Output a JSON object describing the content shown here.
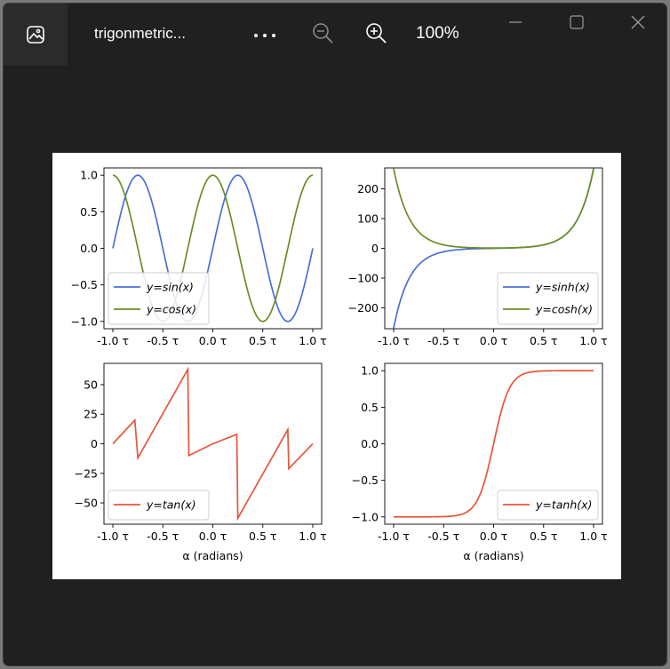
{
  "window": {
    "title": "trigonmetric...",
    "zoom_level": "100%",
    "icons": {
      "app": "image-icon",
      "more": "more-icon",
      "zoom_out": "zoom-out-icon",
      "zoom_in": "zoom-in-icon",
      "minimize": "minimize-icon",
      "maximize": "maximize-icon",
      "close": "close-icon"
    }
  },
  "chart_data": [
    {
      "type": "line",
      "xlim": [
        -1.0,
        1.0
      ],
      "ylim": [
        -1.1,
        1.1
      ],
      "xticks": [
        "-1.0 τ",
        "-0.5 τ",
        "0.0 τ",
        "0.5 τ",
        "1.0 τ"
      ],
      "yticks": [
        "1.0",
        "0.5",
        "0.0",
        "−0.5",
        "−1.0"
      ],
      "yticks_values": [
        1.0,
        0.5,
        0.0,
        -0.5,
        -1.0
      ],
      "xlabel": "",
      "legend": "lower-left",
      "series": [
        {
          "name": "y=sin(x)",
          "color": "#4a6fd8",
          "fn": "sin",
          "x": [
            -1.0,
            -0.75,
            -0.5,
            -0.25,
            0.0,
            0.25,
            0.5,
            0.75,
            1.0
          ],
          "values": [
            0,
            1,
            0,
            -1,
            0,
            1,
            0,
            -1,
            0
          ]
        },
        {
          "name": "y=cos(x)",
          "color": "#6b8e23",
          "fn": "cos",
          "x": [
            -1.0,
            -0.75,
            -0.5,
            -0.25,
            0.0,
            0.25,
            0.5,
            0.75,
            1.0
          ],
          "values": [
            1,
            0,
            -1,
            0,
            1,
            0,
            -1,
            0,
            1
          ]
        }
      ]
    },
    {
      "type": "line",
      "xlim": [
        -1.0,
        1.0
      ],
      "ylim": [
        -270,
        270
      ],
      "xticks": [
        "-1.0 τ",
        "-0.5 τ",
        "0.0 τ",
        "0.5 τ",
        "1.0 τ"
      ],
      "yticks": [
        "200",
        "100",
        "0",
        "−100",
        "−200"
      ],
      "yticks_values": [
        200,
        100,
        0,
        -100,
        -200
      ],
      "xlabel": "",
      "legend": "lower-right",
      "series": [
        {
          "name": "y=sinh(x)",
          "color": "#4a6fd8",
          "fn": "sinh",
          "x": [
            -1.0,
            -0.5,
            0.0,
            0.5,
            1.0
          ],
          "values": [
            -268,
            -11.5,
            0,
            11.5,
            268
          ]
        },
        {
          "name": "y=cosh(x)",
          "color": "#6b8e23",
          "fn": "cosh",
          "x": [
            -1.0,
            -0.5,
            0.0,
            0.5,
            1.0
          ],
          "values": [
            268,
            11.6,
            1,
            11.6,
            268
          ]
        }
      ]
    },
    {
      "type": "line",
      "xlim": [
        -1.0,
        1.0
      ],
      "ylim": [
        -68,
        68
      ],
      "xticks": [
        "-1.0 τ",
        "-0.5 τ",
        "0.0 τ",
        "0.5 τ",
        "1.0 τ"
      ],
      "yticks": [
        "50",
        "25",
        "0",
        "−25",
        "−50"
      ],
      "yticks_values": [
        50,
        25,
        0,
        -25,
        -50
      ],
      "xlabel": "α (radians)",
      "legend": "lower-left",
      "series": [
        {
          "name": "y=tan(x)",
          "color": "#e8553a",
          "fn": "tan",
          "x": [
            -1.0,
            -0.78,
            -0.75,
            -0.25,
            -0.24,
            0.0,
            0.24,
            0.25,
            0.75,
            0.76,
            1.0
          ],
          "values": [
            0,
            20,
            -12,
            63,
            -10,
            0,
            8,
            -63,
            12,
            -21,
            0
          ]
        }
      ]
    },
    {
      "type": "line",
      "xlim": [
        -1.0,
        1.0
      ],
      "ylim": [
        -1.1,
        1.1
      ],
      "xticks": [
        "-1.0 τ",
        "-0.5 τ",
        "0.0 τ",
        "0.5 τ",
        "1.0 τ"
      ],
      "yticks": [
        "1.0",
        "0.5",
        "0.0",
        "−0.5",
        "−1.0"
      ],
      "yticks_values": [
        1.0,
        0.5,
        0.0,
        -0.5,
        -1.0
      ],
      "xlabel": "α (radians)",
      "legend": "lower-right",
      "series": [
        {
          "name": "y=tanh(x)",
          "color": "#e8553a",
          "fn": "tanh",
          "x": [
            -1.0,
            -0.5,
            -0.25,
            0.0,
            0.25,
            0.5,
            1.0
          ],
          "values": [
            -1,
            -1,
            -0.92,
            0,
            0.92,
            1,
            1
          ]
        }
      ]
    }
  ]
}
